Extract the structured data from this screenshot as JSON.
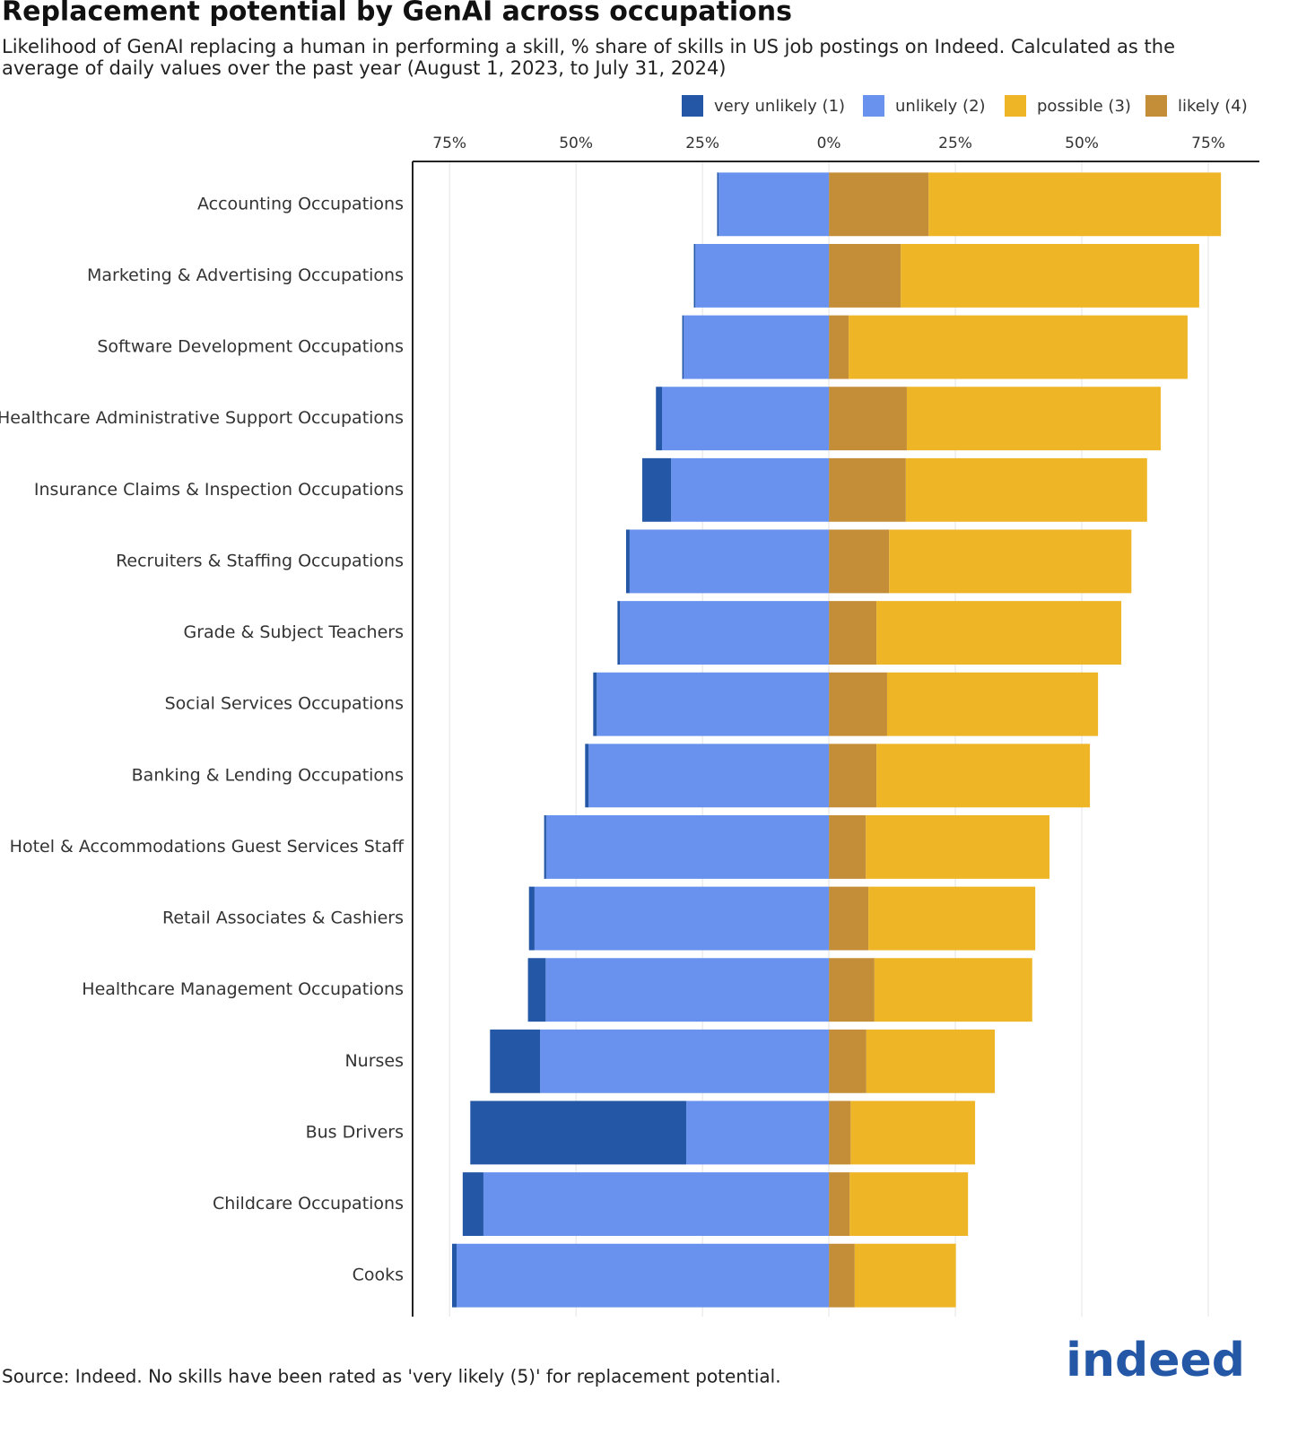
{
  "chart_data": {
    "type": "diverging-bar",
    "title": "Replacement potential by GenAI across occupations",
    "subtitle": [
      "Likelihood of GenAI replacing a human in performing a skill, % share of skills in US job postings on Indeed. Calculated as the",
      "average of daily values over the past year (August 1, 2023, to July 31, 2024)"
    ],
    "categories": [
      "Accounting Occupations",
      "Marketing & Advertising Occupations",
      "Software Development Occupations",
      "Healthcare Administrative Support Occupations",
      "Insurance Claims & Inspection Occupations",
      "Recruiters & Staffing Occupations",
      "Grade & Subject Teachers",
      "Social Services Occupations",
      "Banking & Lending Occupations",
      "Hotel & Accommodations Guest Services Staff",
      "Retail Associates & Cashiers",
      "Healthcare Management Occupations",
      "Nurses",
      "Bus Drivers",
      "Childcare Occupations",
      "Cooks"
    ],
    "series": [
      {
        "name": "very unlikely (1)",
        "color": "#2557a7",
        "values": [
          -0.3,
          -0.3,
          -0.3,
          -1.2,
          -5.7,
          -0.7,
          -0.5,
          -0.7,
          -0.7,
          -0.4,
          -1.1,
          -3.5,
          -9.9,
          -42.7,
          -4.1,
          -0.9
        ]
      },
      {
        "name": "unlikely (2)",
        "color": "#6892ee",
        "values": [
          -21.8,
          -26.4,
          -28.7,
          -33.0,
          -31.2,
          -39.4,
          -41.3,
          -45.9,
          -47.5,
          -55.9,
          -58.2,
          -56.0,
          -57.1,
          -28.2,
          -68.3,
          -73.6
        ]
      },
      {
        "name": "possible (3)",
        "color": "#eeb526",
        "values": [
          57.8,
          59.0,
          67.0,
          50.2,
          47.7,
          47.9,
          48.4,
          41.7,
          42.2,
          36.3,
          33.0,
          31.2,
          25.4,
          24.6,
          23.4,
          20.0
        ]
      },
      {
        "name": "likely (4)",
        "color": "#c48d37",
        "values": [
          19.7,
          14.2,
          3.9,
          15.4,
          15.2,
          11.9,
          9.4,
          11.5,
          9.4,
          7.3,
          7.8,
          9.0,
          7.4,
          4.3,
          4.1,
          5.1
        ]
      }
    ],
    "xlim": [
      -82.3,
      85.1
    ],
    "xticks": [
      {
        "value": -75,
        "label": "75%"
      },
      {
        "value": -50,
        "label": "50%"
      },
      {
        "value": -25,
        "label": "25%"
      },
      {
        "value": 0,
        "label": "0%"
      },
      {
        "value": 25,
        "label": "25%"
      },
      {
        "value": 50,
        "label": "50%"
      },
      {
        "value": 75,
        "label": "75%"
      }
    ],
    "grid": true,
    "source": "Source: Indeed. No skills have been rated as 'very likely (5)' for replacement potential.",
    "logo": "indeed"
  }
}
